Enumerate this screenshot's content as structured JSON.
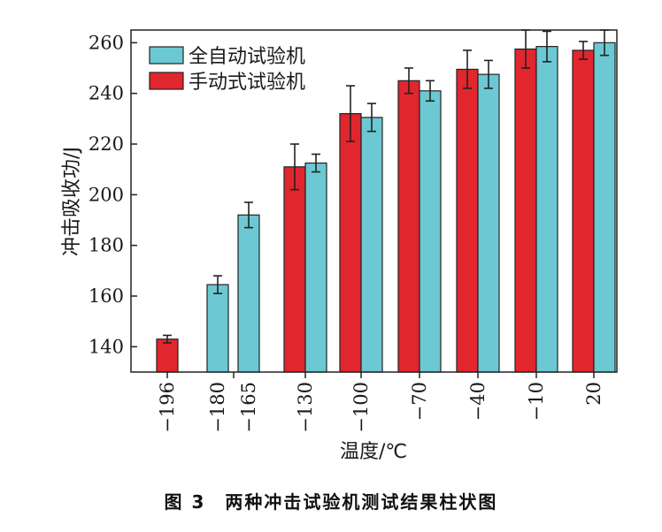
{
  "chart_data": {
    "type": "bar",
    "xlabel": "温度/℃",
    "ylabel": "冲击吸收功/J",
    "ylim": [
      130,
      265
    ],
    "yticks": [
      140,
      160,
      180,
      200,
      220,
      240,
      260
    ],
    "grid": false,
    "legend_position": "top-left",
    "colors": {
      "全自动试验机": "#6CC8D2",
      "手动式试验机": "#E1262D"
    },
    "series": [
      {
        "name": "手动式试验机",
        "points": [
          {
            "x": "−196",
            "value": 143,
            "err": 1.5
          },
          {
            "x": "−130",
            "value": 211,
            "err": 9
          },
          {
            "x": "−100",
            "value": 232,
            "err": 11
          },
          {
            "x": "−70",
            "value": 245,
            "err": 5
          },
          {
            "x": "−40",
            "value": 249.5,
            "err": 7.5
          },
          {
            "x": "−10",
            "value": 257.5,
            "err": 7.5
          },
          {
            "x": "20",
            "value": 257,
            "err": 3.5
          }
        ]
      },
      {
        "name": "全自动试验机",
        "points": [
          {
            "x": "−180",
            "value": 164.5,
            "err": 3.5
          },
          {
            "x": "−165",
            "value": 192,
            "err": 5
          },
          {
            "x": "−130",
            "value": 212.5,
            "err": 3.5
          },
          {
            "x": "−100",
            "value": 230.5,
            "err": 5.5
          },
          {
            "x": "−70",
            "value": 241,
            "err": 4
          },
          {
            "x": "−40",
            "value": 247.5,
            "err": 5.5
          },
          {
            "x": "−10",
            "value": 258.5,
            "err": 6
          },
          {
            "x": "20",
            "value": 260,
            "err": 5
          }
        ]
      }
    ],
    "caption": "图 3　两种冲击试验机测试结果柱状图"
  }
}
